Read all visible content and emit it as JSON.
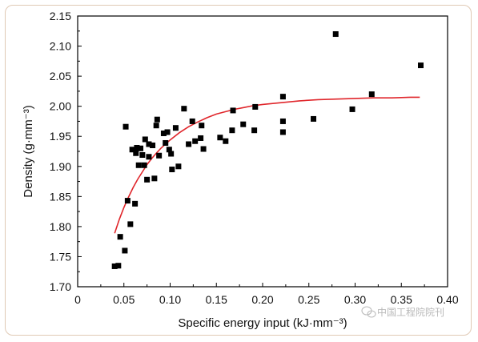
{
  "chart_data": {
    "type": "scatter",
    "xlabel": "Specific energy input (kJ·mm⁻³)",
    "ylabel": "Density (g·mm⁻³)",
    "xlim": [
      0,
      0.4
    ],
    "ylim": [
      1.7,
      2.15
    ],
    "xticks": [
      "0",
      "0.05",
      "0.10",
      "0.15",
      "0.20",
      "0.25",
      "0.30",
      "0.35",
      "0.40"
    ],
    "yticks": [
      "1.70",
      "1.75",
      "1.80",
      "1.85",
      "1.90",
      "1.95",
      "2.00",
      "2.05",
      "2.10",
      "2.15"
    ],
    "grid": false,
    "legend": "none",
    "marker_color": "#000000",
    "fit_color": "#e0262b",
    "points": [
      {
        "x": 0.04,
        "y": 1.734
      },
      {
        "x": 0.044,
        "y": 1.735
      },
      {
        "x": 0.046,
        "y": 1.783
      },
      {
        "x": 0.051,
        "y": 1.76
      },
      {
        "x": 0.052,
        "y": 1.966
      },
      {
        "x": 0.054,
        "y": 1.843
      },
      {
        "x": 0.057,
        "y": 1.804
      },
      {
        "x": 0.059,
        "y": 1.928
      },
      {
        "x": 0.062,
        "y": 1.838
      },
      {
        "x": 0.063,
        "y": 1.922
      },
      {
        "x": 0.064,
        "y": 1.931
      },
      {
        "x": 0.066,
        "y": 1.902
      },
      {
        "x": 0.068,
        "y": 1.93
      },
      {
        "x": 0.07,
        "y": 1.919
      },
      {
        "x": 0.072,
        "y": 1.902
      },
      {
        "x": 0.073,
        "y": 1.945
      },
      {
        "x": 0.075,
        "y": 1.878
      },
      {
        "x": 0.077,
        "y": 1.937
      },
      {
        "x": 0.077,
        "y": 1.916
      },
      {
        "x": 0.081,
        "y": 1.935
      },
      {
        "x": 0.083,
        "y": 1.88
      },
      {
        "x": 0.085,
        "y": 1.968
      },
      {
        "x": 0.086,
        "y": 1.978
      },
      {
        "x": 0.088,
        "y": 1.918
      },
      {
        "x": 0.093,
        "y": 1.955
      },
      {
        "x": 0.095,
        "y": 1.939
      },
      {
        "x": 0.097,
        "y": 1.957
      },
      {
        "x": 0.099,
        "y": 1.928
      },
      {
        "x": 0.101,
        "y": 1.921
      },
      {
        "x": 0.102,
        "y": 1.895
      },
      {
        "x": 0.106,
        "y": 1.964
      },
      {
        "x": 0.109,
        "y": 1.9
      },
      {
        "x": 0.115,
        "y": 1.996
      },
      {
        "x": 0.12,
        "y": 1.937
      },
      {
        "x": 0.124,
        "y": 1.975
      },
      {
        "x": 0.127,
        "y": 1.942
      },
      {
        "x": 0.133,
        "y": 1.947
      },
      {
        "x": 0.134,
        "y": 1.968
      },
      {
        "x": 0.136,
        "y": 1.929
      },
      {
        "x": 0.154,
        "y": 1.948
      },
      {
        "x": 0.16,
        "y": 1.942
      },
      {
        "x": 0.167,
        "y": 1.96
      },
      {
        "x": 0.168,
        "y": 1.993
      },
      {
        "x": 0.179,
        "y": 1.97
      },
      {
        "x": 0.191,
        "y": 1.96
      },
      {
        "x": 0.192,
        "y": 1.999
      },
      {
        "x": 0.222,
        "y": 2.016
      },
      {
        "x": 0.222,
        "y": 1.975
      },
      {
        "x": 0.222,
        "y": 1.957
      },
      {
        "x": 0.255,
        "y": 1.979
      },
      {
        "x": 0.279,
        "y": 2.12
      },
      {
        "x": 0.297,
        "y": 1.995
      },
      {
        "x": 0.318,
        "y": 2.02
      },
      {
        "x": 0.371,
        "y": 2.068
      }
    ],
    "fit_curve": [
      {
        "x": 0.04,
        "y": 1.789
      },
      {
        "x": 0.045,
        "y": 1.812
      },
      {
        "x": 0.05,
        "y": 1.832
      },
      {
        "x": 0.055,
        "y": 1.849
      },
      {
        "x": 0.06,
        "y": 1.865
      },
      {
        "x": 0.065,
        "y": 1.879
      },
      {
        "x": 0.07,
        "y": 1.891
      },
      {
        "x": 0.075,
        "y": 1.903
      },
      {
        "x": 0.08,
        "y": 1.913
      },
      {
        "x": 0.085,
        "y": 1.922
      },
      {
        "x": 0.09,
        "y": 1.93
      },
      {
        "x": 0.1,
        "y": 1.944
      },
      {
        "x": 0.11,
        "y": 1.956
      },
      {
        "x": 0.12,
        "y": 1.966
      },
      {
        "x": 0.13,
        "y": 1.974
      },
      {
        "x": 0.14,
        "y": 1.981
      },
      {
        "x": 0.15,
        "y": 1.987
      },
      {
        "x": 0.16,
        "y": 1.991
      },
      {
        "x": 0.17,
        "y": 1.995
      },
      {
        "x": 0.18,
        "y": 1.998
      },
      {
        "x": 0.19,
        "y": 2.001
      },
      {
        "x": 0.2,
        "y": 2.003
      },
      {
        "x": 0.22,
        "y": 2.006
      },
      {
        "x": 0.24,
        "y": 2.009
      },
      {
        "x": 0.26,
        "y": 2.011
      },
      {
        "x": 0.28,
        "y": 2.012
      },
      {
        "x": 0.3,
        "y": 2.013
      },
      {
        "x": 0.32,
        "y": 2.014
      },
      {
        "x": 0.34,
        "y": 2.014
      },
      {
        "x": 0.36,
        "y": 2.015
      },
      {
        "x": 0.37,
        "y": 2.015
      }
    ]
  },
  "watermark": "中国工程院院刊"
}
